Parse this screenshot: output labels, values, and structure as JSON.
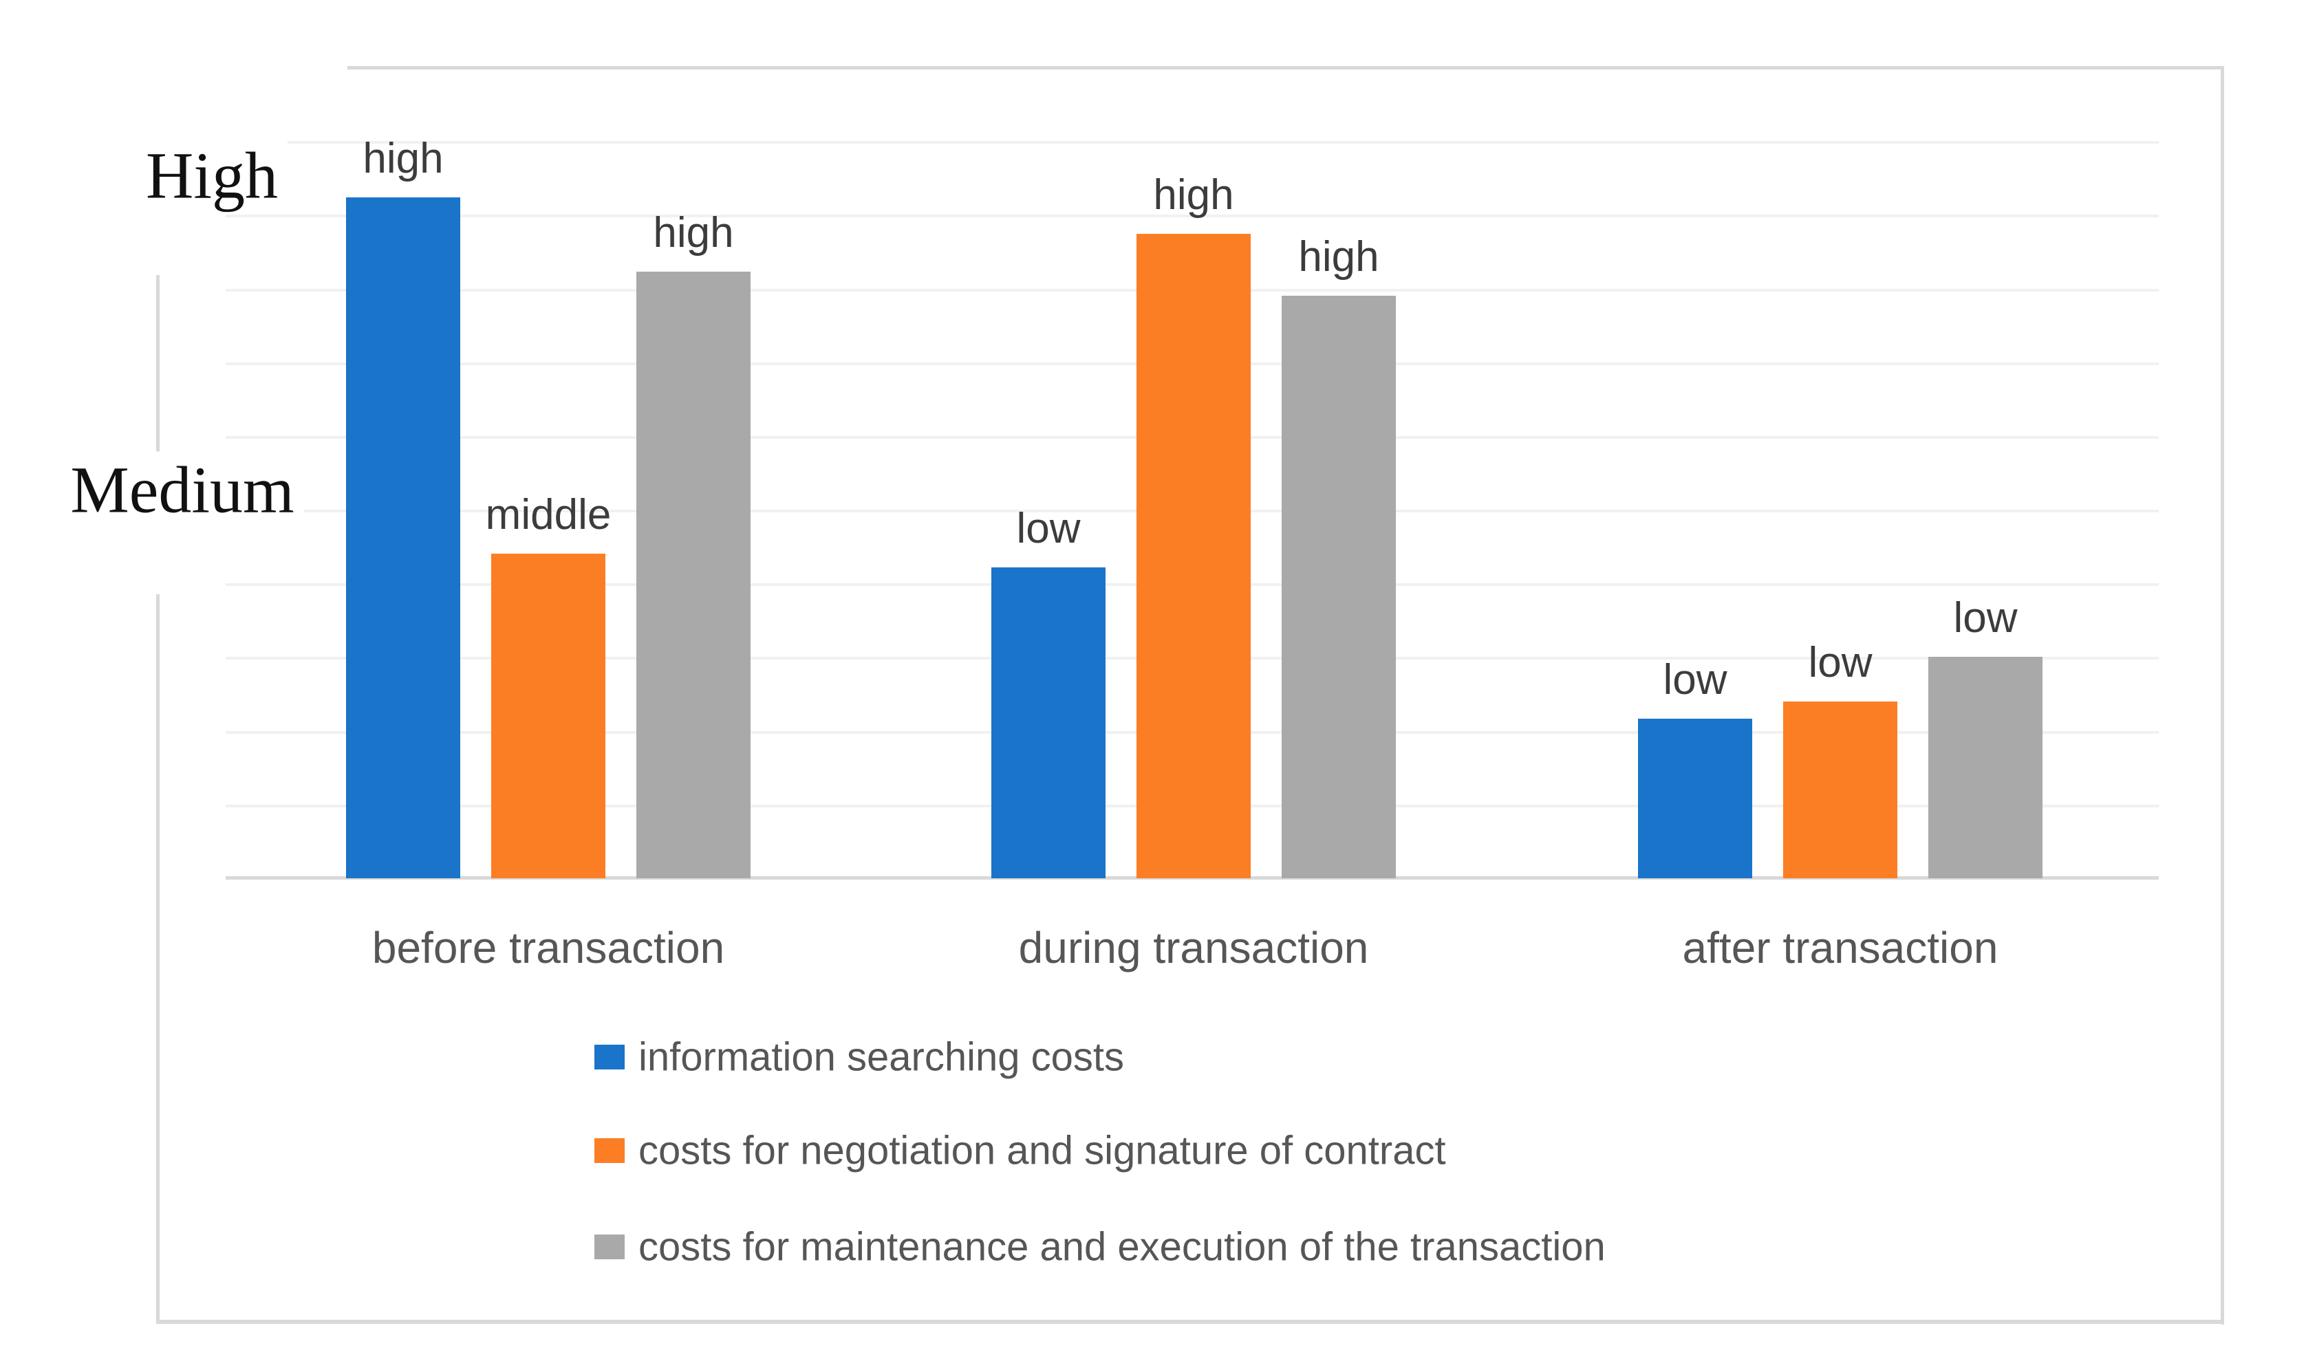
{
  "chart_data": {
    "type": "bar",
    "title": "",
    "categories": [
      "before transaction",
      "during transaction",
      "after transaction"
    ],
    "series": [
      {
        "name": "information searching costs",
        "color": "#1a74c9",
        "levels": [
          "high",
          "low",
          "low"
        ],
        "height_fractions": [
          0.84,
          0.383,
          0.197
        ]
      },
      {
        "name": "costs for negotiation and signature of contract",
        "color": "#fc7e24",
        "levels": [
          "middle",
          "high",
          "low"
        ],
        "height_fractions": [
          0.4,
          0.795,
          0.218
        ]
      },
      {
        "name": "costs for maintenance and execution of the transaction",
        "color": "#a9a9a9",
        "levels": [
          "high",
          "high",
          "low"
        ],
        "height_fractions": [
          0.748,
          0.718,
          0.273
        ]
      }
    ],
    "y_axis": {
      "scale": "qualitative",
      "ticks": [
        {
          "label": "High"
        },
        {
          "label": "Medium"
        }
      ]
    },
    "x_axis": {
      "label": ""
    },
    "legend_position": "bottom-left",
    "grid": true,
    "gridline_count": 10,
    "colors": {
      "grid": "#f1f1f1",
      "frame": "#d9d9d9",
      "data_label": "#3c3c3c",
      "axis_label": "#565656"
    }
  }
}
